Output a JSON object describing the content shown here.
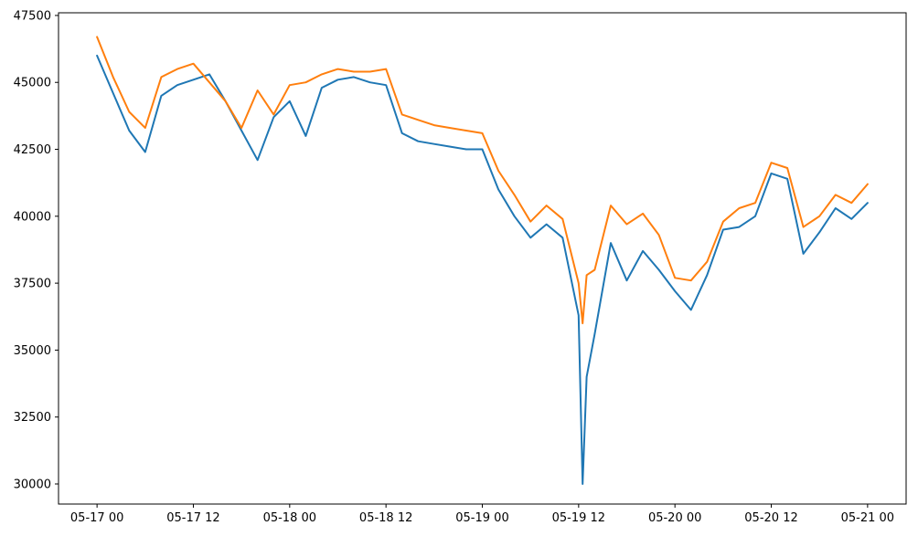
{
  "chart_data": {
    "type": "line",
    "title": "",
    "xlabel": "",
    "ylabel": "",
    "grid": false,
    "xlim_hours": [
      -4.8,
      100.8
    ],
    "ylim": [
      29250,
      47600
    ],
    "x_ticks": [
      {
        "label": "05-17 00",
        "h": 0
      },
      {
        "label": "05-17 12",
        "h": 12
      },
      {
        "label": "05-18 00",
        "h": 24
      },
      {
        "label": "05-18 12",
        "h": 36
      },
      {
        "label": "05-19 00",
        "h": 48
      },
      {
        "label": "05-19 12",
        "h": 60
      },
      {
        "label": "05-20 00",
        "h": 72
      },
      {
        "label": "05-20 12",
        "h": 84
      },
      {
        "label": "05-21 00",
        "h": 96
      }
    ],
    "y_ticks": [
      30000,
      32500,
      35000,
      37500,
      40000,
      42500,
      45000,
      47500
    ],
    "x_hours": [
      0,
      2,
      4,
      6,
      8,
      10,
      12,
      14,
      16,
      18,
      20,
      22,
      24,
      26,
      28,
      30,
      32,
      34,
      36,
      38,
      40,
      42,
      44,
      46,
      48,
      50,
      52,
      54,
      56,
      58,
      60,
      60.5,
      61,
      62,
      64,
      66,
      68,
      70,
      72,
      74,
      76,
      78,
      80,
      82,
      84,
      86,
      88,
      90,
      92,
      94,
      96
    ],
    "series": [
      {
        "color": "#1f77b4",
        "values": [
          46000,
          44600,
          43200,
          42400,
          44500,
          44900,
          45100,
          45300,
          44300,
          43200,
          42100,
          43700,
          44300,
          43000,
          44800,
          45100,
          45200,
          45000,
          44900,
          43100,
          42800,
          42700,
          42600,
          42500,
          42500,
          41000,
          40000,
          39200,
          39700,
          39200,
          36300,
          30000,
          34000,
          35600,
          39000,
          37600,
          38700,
          38000,
          37200,
          36500,
          37800,
          39500,
          39600,
          40000,
          41600,
          41400,
          38600,
          39400,
          40300,
          39900,
          40500
        ]
      },
      {
        "color": "#ff7f0e",
        "values": [
          46700,
          45200,
          43900,
          43300,
          45200,
          45500,
          45700,
          45000,
          44300,
          43300,
          44700,
          43800,
          44900,
          45000,
          45300,
          45500,
          45400,
          45400,
          45500,
          43800,
          43600,
          43400,
          43300,
          43200,
          43100,
          41700,
          40800,
          39800,
          40400,
          39900,
          37500,
          36000,
          37800,
          38000,
          40400,
          39700,
          40100,
          39300,
          37700,
          37600,
          38300,
          39800,
          40300,
          40500,
          42000,
          41800,
          39600,
          40000,
          40800,
          40500,
          41200
        ]
      }
    ]
  }
}
